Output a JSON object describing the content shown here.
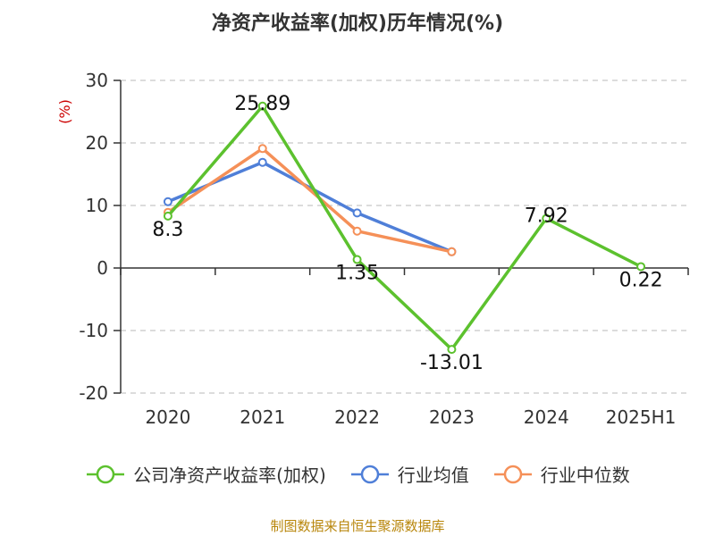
{
  "chart_data": {
    "type": "line",
    "title": "净资产收益率(加权)历年情况(%)",
    "ylabel": "(%)",
    "xlabel": "",
    "categories": [
      "2020",
      "2021",
      "2022",
      "2023",
      "2024",
      "2025H1"
    ],
    "ylim": [
      -20,
      30
    ],
    "yticks": [
      30,
      20,
      10,
      0,
      -10,
      -20
    ],
    "grid": true,
    "legend_position": "bottom",
    "series": [
      {
        "name": "公司净资产收益率(加权)",
        "color": "#5cc12e",
        "values": [
          8.3,
          25.89,
          1.35,
          -13.01,
          7.92,
          0.22
        ],
        "show_labels": true
      },
      {
        "name": "行业均值",
        "color": "#4f7fd8",
        "values": [
          10.6,
          16.9,
          8.8,
          2.6,
          null,
          null
        ],
        "show_labels": false
      },
      {
        "name": "行业中位数",
        "color": "#f59058",
        "values": [
          8.9,
          19.1,
          5.9,
          2.6,
          null,
          null
        ],
        "show_labels": false
      }
    ]
  },
  "source": "制图数据来自恒生聚源数据库"
}
